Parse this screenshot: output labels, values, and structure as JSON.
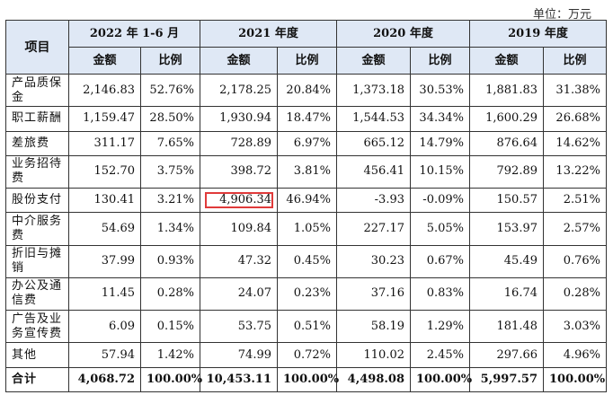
{
  "unit_label": "单位：万元",
  "item_header": "项目",
  "periods": [
    "2022 年 1-6 月",
    "2021 年度",
    "2020 年度",
    "2019 年度"
  ],
  "amount_header": "金额",
  "ratio_header": "比例",
  "rows": [
    {
      "label": "产品质保金",
      "values": [
        "2,146.83",
        "52.76%",
        "2,178.25",
        "20.84%",
        "1,373.18",
        "30.53%",
        "1,881.83",
        "31.38%"
      ]
    },
    {
      "label": "职工薪酬",
      "values": [
        "1,159.47",
        "28.50%",
        "1,930.94",
        "18.47%",
        "1,544.53",
        "34.34%",
        "1,600.29",
        "26.68%"
      ]
    },
    {
      "label": "差旅费",
      "values": [
        "311.17",
        "7.65%",
        "728.89",
        "6.97%",
        "665.12",
        "14.79%",
        "876.64",
        "14.62%"
      ]
    },
    {
      "label": "业务招待费",
      "values": [
        "152.70",
        "3.75%",
        "398.72",
        "3.81%",
        "456.41",
        "10.15%",
        "792.89",
        "13.22%"
      ]
    },
    {
      "label": "股份支付",
      "values": [
        "130.41",
        "3.21%",
        "4,906.34",
        "46.94%",
        "-3.93",
        "-0.09%",
        "150.57",
        "2.51%"
      ]
    },
    {
      "label": "中介服务费",
      "values": [
        "54.69",
        "1.34%",
        "109.84",
        "1.05%",
        "227.17",
        "5.05%",
        "153.97",
        "2.57%"
      ]
    },
    {
      "label": "折旧与摊销",
      "values": [
        "37.99",
        "0.93%",
        "47.32",
        "0.45%",
        "30.23",
        "0.67%",
        "45.49",
        "0.76%"
      ]
    },
    {
      "label": "办公及通信费",
      "values": [
        "11.45",
        "0.28%",
        "24.07",
        "0.23%",
        "37.16",
        "0.83%",
        "16.74",
        "0.28%"
      ]
    },
    {
      "label": "广告及业务宣传费",
      "values": [
        "6.09",
        "0.15%",
        "53.75",
        "0.51%",
        "58.19",
        "1.29%",
        "181.48",
        "3.03%"
      ]
    },
    {
      "label": "其他",
      "values": [
        "57.94",
        "1.42%",
        "74.99",
        "0.72%",
        "110.02",
        "2.45%",
        "297.66",
        "4.96%"
      ]
    }
  ],
  "total": {
    "label": "合计",
    "values": [
      "4,068.72",
      "100.00%",
      "10,453.11",
      "100.00%",
      "4,498.08",
      "100.00%",
      "5,997.57",
      "100.00%"
    ]
  },
  "highlight_color": "#e03a3a",
  "header_bg": "#dfe8f5"
}
